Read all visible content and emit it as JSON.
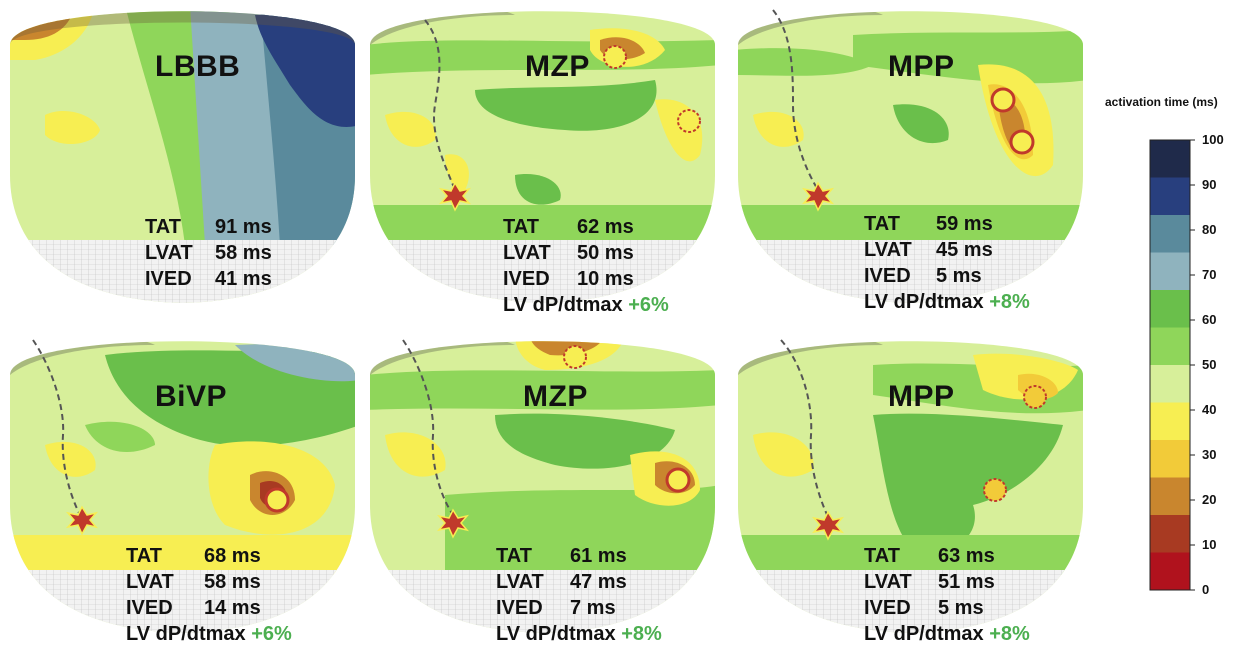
{
  "panels": [
    {
      "title": "LBBB",
      "tat": "TAT",
      "tat_val": "91 ms",
      "lvat": "LVAT",
      "lvat_val": "58 ms",
      "ived": "IVED",
      "ived_val": "41 ms",
      "dp": "",
      "dp_val": ""
    },
    {
      "title": "MZP",
      "tat": "TAT",
      "tat_val": "62 ms",
      "lvat": "LVAT",
      "lvat_val": "50 ms",
      "ived": "IVED",
      "ived_val": "10 ms",
      "dp": "LV dP/dtmax",
      "dp_val": "+6%"
    },
    {
      "title": "MPP",
      "tat": "TAT",
      "tat_val": "59 ms",
      "lvat": "LVAT",
      "lvat_val": "45 ms",
      "ived": "IVED",
      "ived_val": "5 ms",
      "dp": "LV dP/dtmax",
      "dp_val": "+8%"
    },
    {
      "title": "BiVP",
      "tat": "TAT",
      "tat_val": "68 ms",
      "lvat": "LVAT",
      "lvat_val": "58 ms",
      "ived": "IVED",
      "ived_val": "14 ms",
      "dp": "LV dP/dtmax",
      "dp_val": "+6%"
    },
    {
      "title": "MZP",
      "tat": "TAT",
      "tat_val": "61 ms",
      "lvat": "LVAT",
      "lvat_val": "47 ms",
      "ived": "IVED",
      "ived_val": "7 ms",
      "dp": "LV dP/dtmax",
      "dp_val": "+8%"
    },
    {
      "title": "MPP",
      "tat": "TAT",
      "tat_val": "63 ms",
      "lvat": "LVAT",
      "lvat_val": "51 ms",
      "ived": "IVED",
      "ived_val": "5 ms",
      "dp": "LV dP/dtmax",
      "dp_val": "+8%"
    }
  ],
  "colorbar": {
    "title": "activation time (ms)",
    "ticks": [
      "100",
      "90",
      "80",
      "70",
      "60",
      "50",
      "40",
      "30",
      "20",
      "10",
      "0"
    ],
    "colors": [
      "#1f2a4a",
      "#283f7e",
      "#5a8a9c",
      "#8fb3be",
      "#6abf4b",
      "#8fd65a",
      "#d7ef9a",
      "#f7ee52",
      "#f2cb39",
      "#c9862e",
      "#a83a22",
      "#b0121d"
    ]
  }
}
